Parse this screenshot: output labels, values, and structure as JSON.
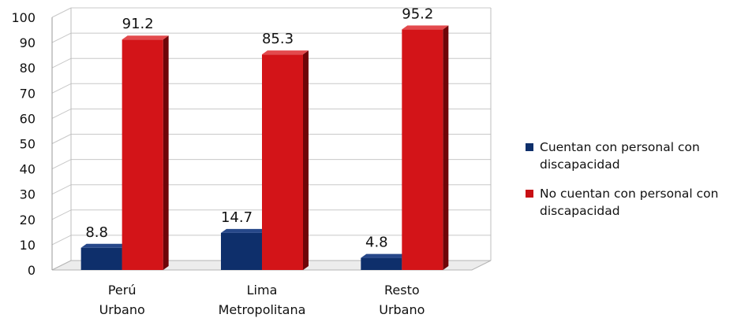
{
  "chart_data": {
    "type": "bar",
    "categories": [
      [
        "Perú",
        "Urbano"
      ],
      [
        "Lima",
        "Metropolitana"
      ],
      [
        "Resto",
        "Urbano"
      ]
    ],
    "series": [
      {
        "name": "Cuentan con personal con discapacidad",
        "values": [
          8.8,
          14.7,
          4.8
        ],
        "color": "#0e2f6b"
      },
      {
        "name": "No cuentan con personal con discapacidad",
        "values": [
          91.2,
          85.3,
          95.2
        ],
        "color": "#c81014"
      }
    ],
    "data_labels": [
      [
        "8.8",
        "14.7",
        "4.8"
      ],
      [
        "91.2",
        "85.3",
        "95.2"
      ]
    ],
    "yticks": [
      "0",
      "10",
      "20",
      "30",
      "40",
      "50",
      "60",
      "70",
      "80",
      "90",
      "100"
    ],
    "ylim": [
      0,
      100
    ],
    "grid": true,
    "legend_position": "right"
  },
  "legend": {
    "items": [
      {
        "line1": "Cuentan con personal con",
        "line2": "discapacidad",
        "color": "#0e2f6b"
      },
      {
        "line1": "No cuentan con personal con",
        "line2": "discapacidad",
        "color": "#c81014"
      }
    ]
  }
}
